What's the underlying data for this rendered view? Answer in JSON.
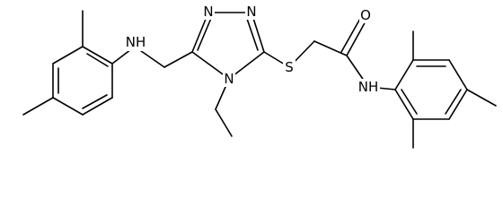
{
  "atoms": [
    "NH",
    "N",
    "N",
    "N",
    "S",
    "O",
    "NH"
  ]
}
